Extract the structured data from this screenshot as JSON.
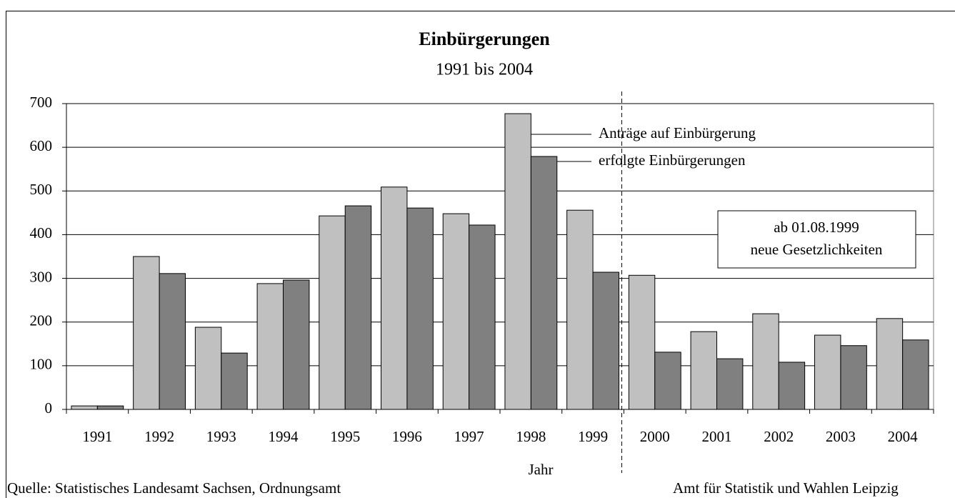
{
  "chart_data": {
    "type": "bar",
    "title": "Einbürgerungen",
    "subtitle": "1991 bis 2004",
    "x_label": "Jahr",
    "categories": [
      "1991",
      "1992",
      "1993",
      "1994",
      "1995",
      "1996",
      "1997",
      "1998",
      "1999",
      "2000",
      "2001",
      "2002",
      "2003",
      "2004"
    ],
    "series": [
      {
        "name": "Anträge auf Einbürgerung",
        "color": "#c0c0c0",
        "values": [
          8,
          350,
          188,
          288,
          443,
          509,
          448,
          677,
          456,
          307,
          178,
          219,
          170,
          208
        ]
      },
      {
        "name": "erfolgte Einbürgerungen",
        "color": "#808080",
        "values": [
          8,
          311,
          129,
          296,
          466,
          461,
          422,
          579,
          314,
          131,
          116,
          108,
          146,
          159
        ]
      }
    ],
    "ylim": [
      0,
      700
    ],
    "yticks": [
      0,
      100,
      200,
      300,
      400,
      500,
      600,
      700
    ],
    "grid": true,
    "annotation": [
      "ab 01.08.1999",
      "neue Gesetzlichkeiten"
    ],
    "source": "Quelle: Statistisches Landesamt Sachsen, Ordnungsamt",
    "credit": "Amt für Statistik und Wahlen Leipzig"
  }
}
